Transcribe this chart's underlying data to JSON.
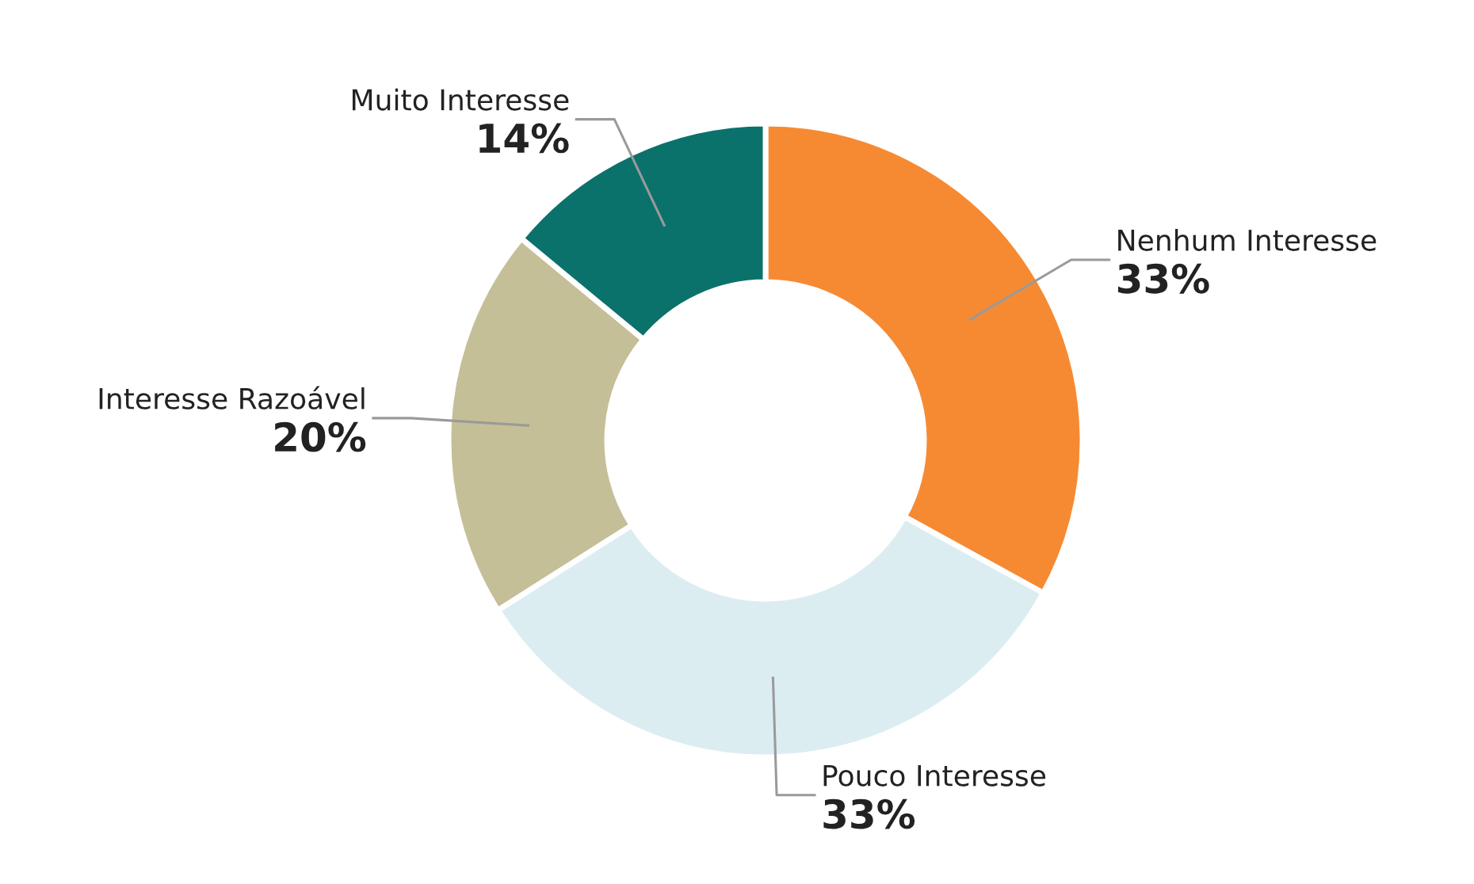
{
  "chart_data": {
    "type": "donut",
    "categories": [
      "Nenhum Interesse",
      "Pouco Interesse",
      "Interesse Razoável",
      "Muito Interesse"
    ],
    "values": [
      33,
      33,
      20,
      14
    ],
    "colors": [
      "#f68a33",
      "#dcedf2",
      "#c5bf98",
      "#0b716b"
    ],
    "value_labels": [
      "33%",
      "33%",
      "20%",
      "14%"
    ]
  }
}
